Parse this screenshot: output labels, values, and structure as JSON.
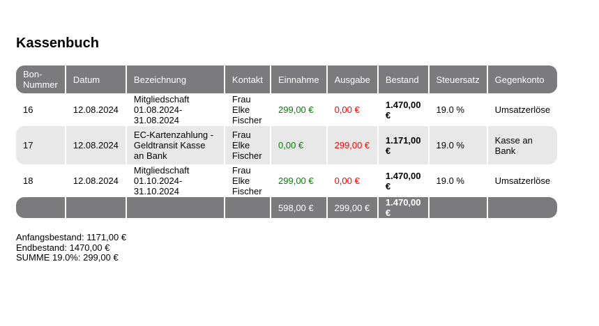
{
  "title": "Kassenbuch",
  "columns": [
    "Bon-\nNummer",
    "Datum",
    "Bezeichnung",
    "Kontakt",
    "Einnahme",
    "Ausgabe",
    "Bestand",
    "Steuersatz",
    "Gegenkonto"
  ],
  "rows": [
    {
      "bon": "16",
      "datum": "12.08.2024",
      "bezeichnung": "Mitgliedschaft 01.08.2024-31.08.2024",
      "kontakt": "Frau Elke Fischer",
      "einnahme": "299,00 €",
      "ausgabe": "0,00 €",
      "bestand": "1.470,00 €",
      "steuersatz": "19.0 %",
      "gegenkonto": "Umsatzerlöse"
    },
    {
      "bon": "17",
      "datum": "12.08.2024",
      "bezeichnung": "EC-Kartenzahlung - Geldtransit Kasse an Bank",
      "kontakt": "Frau Elke Fischer",
      "einnahme": "0,00 €",
      "ausgabe": "299,00 €",
      "bestand": "1.171,00 €",
      "steuersatz": "19.0 %",
      "gegenkonto": "Kasse an Bank"
    },
    {
      "bon": "18",
      "datum": "12.08.2024",
      "bezeichnung": "Mitgliedschaft 01.10.2024-31.10.2024",
      "kontakt": "Frau Elke Fischer",
      "einnahme": "299,00 €",
      "ausgabe": "0,00 €",
      "bestand": "1.470,00 €",
      "steuersatz": "19.0 %",
      "gegenkonto": "Umsatzerlöse"
    }
  ],
  "totals": {
    "einnahme": "598,00 €",
    "ausgabe": "299,00 €",
    "bestand": "1.470,00 €"
  },
  "summary": [
    "Anfangsbestand: 1171,00 €",
    "Endbestand: 1470,00 €",
    "SUMME 19.0%: 299,00 €"
  ],
  "colors": {
    "header": "#7b7b7d",
    "income": "#0a7d0a",
    "expense": "#ff0000",
    "alt_row": "#e8e8e8"
  }
}
